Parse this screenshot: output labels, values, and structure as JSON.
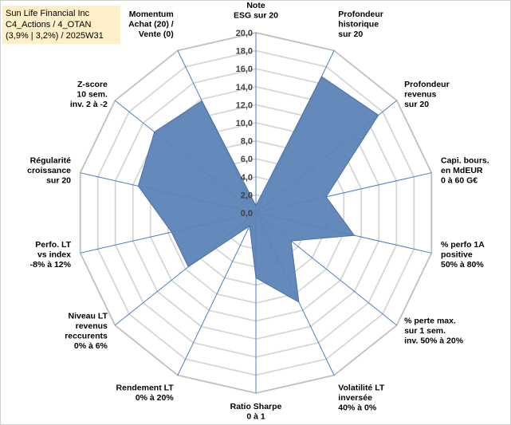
{
  "chart_data": {
    "type": "radar",
    "title_lines": [
      "Sun Life Financial Inc",
      "C4_Actions / 4_OTAN",
      "(3,9% | 3,2%) / 2025W31"
    ],
    "r_range": [
      0,
      20
    ],
    "ticks": [
      "0,0",
      "2,0",
      "4,0",
      "6,0",
      "8,0",
      "10,0",
      "12,0",
      "14,0",
      "16,0",
      "18,0",
      "20,0"
    ],
    "axes": [
      {
        "label": [
          "Note",
          "ESG sur 20"
        ],
        "value": 0.8
      },
      {
        "label": [
          "Profondeur",
          "historique",
          "sur 20"
        ],
        "value": 16.8
      },
      {
        "label": [
          "Profondeur",
          "revenus",
          "sur 20"
        ],
        "value": 17.4
      },
      {
        "label": [
          "Capi. bours.",
          "en MdEUR",
          "0 à 60 G€"
        ],
        "value": 8.0
      },
      {
        "label": [
          "% perfo 1A",
          "positive",
          "50% à 80%"
        ],
        "value": 11.2
      },
      {
        "label": [
          "% perte max.",
          "sur 1 sem.",
          "inv. 50% à 20%"
        ],
        "value": 5.0
      },
      {
        "label": [
          "Volatilité LT",
          "inversée",
          "40% à 0%"
        ],
        "value": 11.0
      },
      {
        "label": [
          "Ratio Sharpe",
          "0 à 1"
        ],
        "value": 7.2
      },
      {
        "label": [
          "Rendement LT",
          "0% à 20%"
        ],
        "value": 1.6
      },
      {
        "label": [
          "Niveau LT",
          "revenus",
          "reccurents",
          "0% à 6%"
        ],
        "value": 9.6
      },
      {
        "label": [
          "Perfo. LT",
          "vs index",
          "-8% à 12%"
        ],
        "value": 9.6
      },
      {
        "label": [
          "Régularité",
          "croissance",
          "sur 20"
        ],
        "value": 13.4
      },
      {
        "label": [
          "Z-score",
          "10 sem.",
          "inv. 2 à -2"
        ],
        "value": 14.4
      },
      {
        "label": [
          "Momentum",
          "Achat (20) /",
          "Vente (0)"
        ],
        "value": 13.8
      }
    ],
    "grid": true,
    "fill_color": "#5b84b6",
    "line_color": "#4a6fa5",
    "spoke_color": "#4f7fc4",
    "grid_color": "#d6d6d6"
  }
}
